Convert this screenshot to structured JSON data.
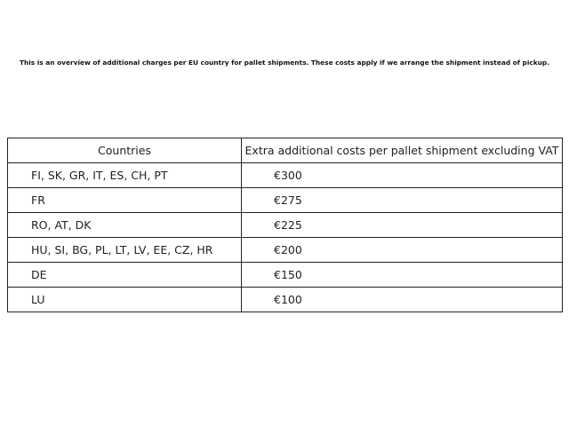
{
  "intro": "This is an overview of additional charges per EU country for pallet shipments. These costs apply if we arrange the shipment instead of pickup.",
  "table": {
    "headers": [
      "Countries",
      "Extra additional costs per pallet shipment excluding VAT"
    ],
    "rows": [
      {
        "countries": "FI, SK, GR, IT, ES, CH, PT",
        "cost": "€300"
      },
      {
        "countries": "FR",
        "cost": "€275"
      },
      {
        "countries": "RO, AT, DK",
        "cost": "€225"
      },
      {
        "countries": "HU, SI, BG, PL, LT, LV, EE, CZ, HR",
        "cost": "€200"
      },
      {
        "countries": "DE",
        "cost": "€150"
      },
      {
        "countries": "LU",
        "cost": "€100"
      }
    ]
  }
}
